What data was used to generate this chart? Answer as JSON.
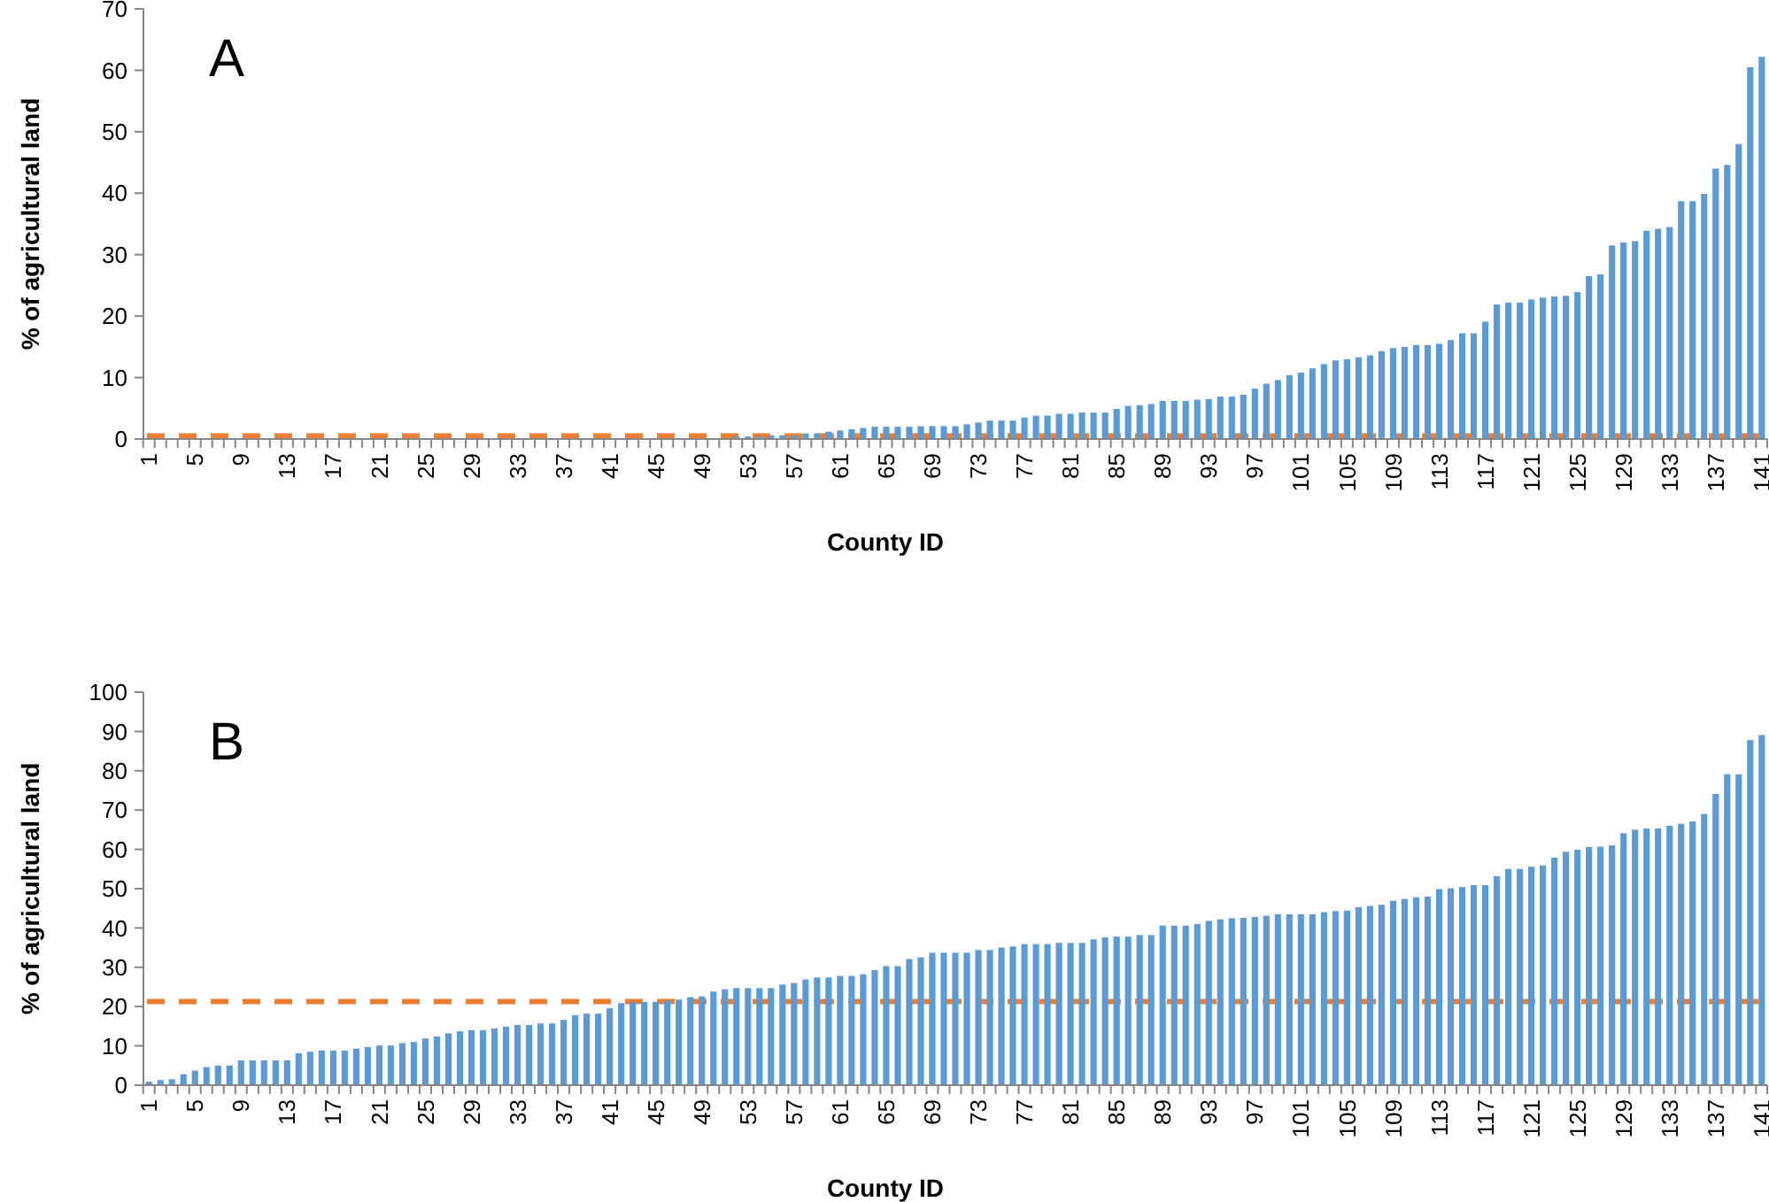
{
  "chart_data": [
    {
      "type": "bar",
      "annotations": [
        "A"
      ],
      "xlabel": "County ID",
      "ylabel": "% of agricultural land",
      "color": "#5b9bd5",
      "ylim": [
        0,
        70
      ],
      "yticks": [
        0,
        10,
        20,
        30,
        40,
        50,
        60,
        70
      ],
      "grid": false,
      "categories": [
        "1",
        null,
        null,
        null,
        "5",
        null,
        null,
        null,
        "9",
        null,
        null,
        null,
        "13",
        null,
        null,
        null,
        "17",
        null,
        null,
        null,
        "21",
        null,
        null,
        null,
        "25",
        null,
        null,
        null,
        "29",
        null,
        null,
        null,
        "33",
        null,
        null,
        null,
        "37",
        null,
        null,
        null,
        "41",
        null,
        null,
        null,
        "45",
        null,
        null,
        null,
        "49",
        null,
        null,
        null,
        "53",
        null,
        null,
        null,
        "57",
        null,
        null,
        null,
        "61",
        null,
        null,
        null,
        "65",
        null,
        null,
        null,
        "69",
        null,
        null,
        null,
        "73",
        null,
        null,
        null,
        "77",
        null,
        null,
        null,
        "81",
        null,
        null,
        null,
        "85",
        null,
        null,
        null,
        "89",
        null,
        null,
        null,
        "93",
        null,
        null,
        null,
        "97",
        null,
        null,
        null,
        "101",
        null,
        null,
        null,
        "105",
        null,
        null,
        null,
        "109",
        null,
        null,
        null,
        "113",
        null,
        null,
        null,
        "117",
        null,
        null,
        null,
        "121",
        null,
        null,
        null,
        "125",
        null,
        null,
        null,
        "129",
        null,
        null,
        null,
        "133",
        null,
        null,
        null,
        "137",
        null,
        null,
        null,
        "141"
      ],
      "values": [
        0.1,
        0.1,
        0.1,
        0.1,
        0.1,
        0.1,
        0.1,
        0.1,
        0.1,
        0.1,
        0.1,
        0.1,
        0.1,
        0.1,
        0.1,
        0.1,
        0.1,
        0.1,
        0.1,
        0.1,
        0.1,
        0.1,
        0.1,
        0.1,
        0.1,
        0.1,
        0.1,
        0.1,
        0.1,
        0.1,
        0.1,
        0.1,
        0.1,
        0.1,
        0.1,
        0.1,
        0.1,
        0.1,
        0.1,
        0.1,
        0.1,
        0.1,
        0.1,
        0.1,
        0.1,
        0.1,
        0.1,
        null,
        null,
        null,
        null,
        0.4,
        0.4,
        0.4,
        0.6,
        0.6,
        0.6,
        0.9,
        0.9,
        1.2,
        1.4,
        1.6,
        1.8,
        2.0,
        2.0,
        2.0,
        2.0,
        2.1,
        2.1,
        2.1,
        2.1,
        2.4,
        2.7,
        3.0,
        3.0,
        3.0,
        3.5,
        3.8,
        3.8,
        4.1,
        4.1,
        4.3,
        4.3,
        4.3,
        4.9,
        5.4,
        5.5,
        5.7,
        6.2,
        6.2,
        6.2,
        6.4,
        6.5,
        6.9,
        6.9,
        7.2,
        8.2,
        9.0,
        9.6,
        10.4,
        10.8,
        11.5,
        12.2,
        12.8,
        13.0,
        13.3,
        13.6,
        14.3,
        14.8,
        15.0,
        15.3,
        15.3,
        15.5,
        16.1,
        17.2,
        17.2,
        19.1,
        21.9,
        22.2,
        22.2,
        22.7,
        23.0,
        23.2,
        23.3,
        23.9,
        26.5,
        26.8,
        31.5,
        32.0,
        32.2,
        33.9,
        34.2,
        34.5,
        38.7,
        38.7,
        39.9,
        44.0,
        44.6,
        48.0,
        60.5,
        62.2
      ],
      "ref_lines": [
        {
          "axis": "y",
          "value": 0.5,
          "color": "#ed7d31",
          "line_style": "dashed"
        }
      ]
    },
    {
      "type": "bar",
      "annotations": [
        "B"
      ],
      "xlabel": "County ID",
      "ylabel": "% of agricultural land",
      "color": "#5b9bd5",
      "ylim": [
        0,
        100
      ],
      "yticks": [
        0,
        10,
        20,
        30,
        40,
        50,
        60,
        70,
        80,
        90,
        100
      ],
      "grid": false,
      "categories": [
        "1",
        null,
        null,
        null,
        "5",
        null,
        null,
        null,
        "9",
        null,
        null,
        null,
        "13",
        null,
        null,
        null,
        "17",
        null,
        null,
        null,
        "21",
        null,
        null,
        null,
        "25",
        null,
        null,
        null,
        "29",
        null,
        null,
        null,
        "33",
        null,
        null,
        null,
        "37",
        null,
        null,
        null,
        "41",
        null,
        null,
        null,
        "45",
        null,
        null,
        null,
        "49",
        null,
        null,
        null,
        "53",
        null,
        null,
        null,
        "57",
        null,
        null,
        null,
        "61",
        null,
        null,
        null,
        "65",
        null,
        null,
        null,
        "69",
        null,
        null,
        null,
        "73",
        null,
        null,
        null,
        "77",
        null,
        null,
        null,
        "81",
        null,
        null,
        null,
        "85",
        null,
        null,
        null,
        "89",
        null,
        null,
        null,
        "93",
        null,
        null,
        null,
        "97",
        null,
        null,
        null,
        "101",
        null,
        null,
        null,
        "105",
        null,
        null,
        null,
        "109",
        null,
        null,
        null,
        "113",
        null,
        null,
        null,
        "117",
        null,
        null,
        null,
        "121",
        null,
        null,
        null,
        "125",
        null,
        null,
        null,
        "129",
        null,
        null,
        null,
        "133",
        null,
        null,
        null,
        "137",
        null,
        null,
        null,
        "141"
      ],
      "values": [
        0.9,
        1.3,
        1.5,
        2.8,
        3.7,
        4.6,
        5.0,
        5.0,
        6.3,
        6.3,
        6.3,
        6.3,
        6.3,
        8.1,
        8.5,
        8.8,
        8.8,
        8.8,
        9.3,
        9.7,
        10.1,
        10.1,
        10.7,
        11.0,
        11.9,
        12.4,
        13.2,
        13.7,
        14.0,
        14.0,
        14.4,
        14.9,
        15.3,
        15.3,
        15.7,
        15.7,
        16.6,
        17.8,
        18.2,
        18.2,
        19.6,
        20.9,
        21.2,
        21.2,
        21.2,
        21.5,
        21.8,
        22.4,
        22.6,
        23.8,
        24.4,
        24.7,
        24.7,
        24.7,
        24.7,
        25.6,
        26.0,
        26.9,
        27.4,
        27.4,
        27.8,
        27.8,
        28.2,
        29.3,
        30.3,
        30.3,
        32.1,
        32.5,
        33.7,
        33.7,
        33.7,
        33.7,
        34.4,
        34.4,
        35.0,
        35.3,
        35.9,
        35.9,
        35.9,
        36.2,
        36.2,
        36.2,
        37.1,
        37.6,
        37.8,
        37.8,
        38.2,
        38.2,
        40.6,
        40.6,
        40.6,
        41.0,
        41.8,
        42.2,
        42.5,
        42.6,
        42.8,
        43.1,
        43.5,
        43.5,
        43.5,
        43.5,
        44.0,
        44.3,
        44.4,
        45.3,
        45.6,
        45.9,
        46.9,
        47.4,
        47.8,
        48.0,
        49.9,
        50.1,
        50.4,
        50.9,
        50.9,
        53.2,
        55.0,
        55.0,
        55.6,
        55.9,
        57.9,
        59.4,
        59.9,
        60.6,
        60.7,
        61.0,
        64.1,
        65.0,
        65.3,
        65.3,
        66.0,
        66.5,
        67.1,
        69.0,
        74.1,
        79.1,
        79.1,
        87.8,
        89.1
      ],
      "ref_lines": [
        {
          "axis": "y",
          "value": 21.3,
          "color": "#ed7d31",
          "line_style": "dashed"
        }
      ]
    }
  ]
}
